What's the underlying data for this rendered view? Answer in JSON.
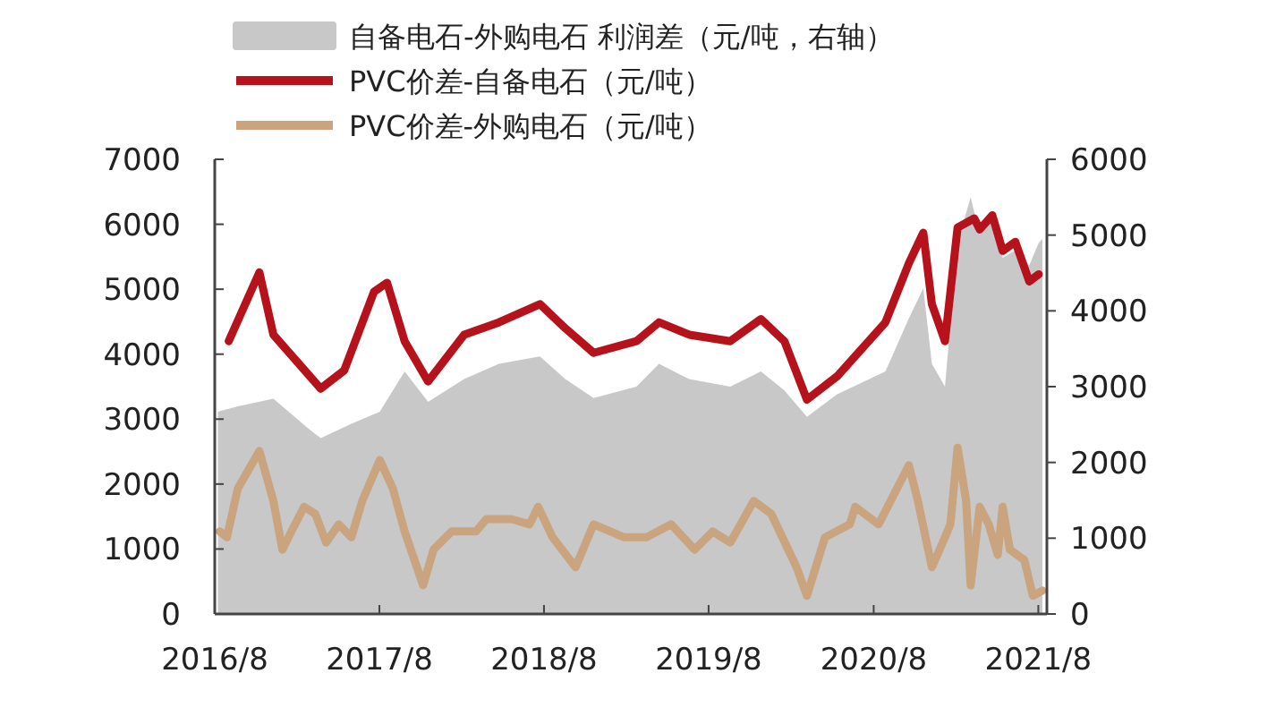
{
  "chart_data": {
    "type": "line",
    "series": [
      {
        "name": "自备电石-外购电石 利润差（元/吨，右轴）",
        "type": "area",
        "axis": "y2",
        "color": "#c8c8c8",
        "x": [
          "2016-08-08",
          "2016-09-21",
          "2016-12-09",
          "2017-02-28",
          "2017-03-24",
          "2017-05-31",
          "2017-08-02",
          "2017-09-26",
          "2017-11-17",
          "2018-02-05",
          "2018-04-23",
          "2018-07-23",
          "2018-09-17",
          "2018-11-19",
          "2019-02-22",
          "2019-04-13",
          "2019-06-19",
          "2019-09-18",
          "2019-11-25",
          "2020-01-16",
          "2020-03-06",
          "2020-05-12",
          "2020-08-27",
          "2020-10-18",
          "2020-11-19",
          "2020-12-08",
          "2021-01-06",
          "2021-02-03",
          "2021-03-04",
          "2021-03-24",
          "2021-04-21",
          "2021-05-14",
          "2021-06-11",
          "2021-07-12",
          "2021-08-02",
          "2021-08-10"
        ],
        "values": [
          2670,
          2740,
          2840,
          2430,
          2320,
          2510,
          2670,
          3200,
          2800,
          3100,
          3300,
          3400,
          3100,
          2850,
          3000,
          3300,
          3100,
          3000,
          3200,
          2950,
          2600,
          2900,
          3200,
          3900,
          4300,
          3300,
          3000,
          4900,
          5500,
          5000,
          5200,
          4700,
          4800,
          4600,
          4900,
          4950
        ]
      },
      {
        "name": "PVC价差-自备电石（元/吨）",
        "color": "#b5121b",
        "x": [
          "2016-09-01",
          "2016-11-08",
          "2016-12-09",
          "2017-03-24",
          "2017-05-15",
          "2017-07-20",
          "2017-08-18",
          "2017-09-26",
          "2017-11-17",
          "2018-02-05",
          "2018-04-23",
          "2018-07-23",
          "2018-09-17",
          "2018-11-19",
          "2019-02-22",
          "2019-04-13",
          "2019-06-19",
          "2019-09-18",
          "2019-11-25",
          "2020-01-16",
          "2020-03-06",
          "2020-05-12",
          "2020-08-27",
          "2020-10-18",
          "2020-11-19",
          "2020-12-08",
          "2021-01-06",
          "2021-02-03",
          "2021-03-12",
          "2021-03-24",
          "2021-04-21",
          "2021-05-14",
          "2021-06-11",
          "2021-07-12",
          "2021-08-02"
        ],
        "values": [
          4200,
          5260,
          4300,
          3470,
          3750,
          4960,
          5100,
          4200,
          3580,
          4300,
          4490,
          4770,
          4400,
          4020,
          4200,
          4490,
          4300,
          4200,
          4540,
          4200,
          3300,
          3660,
          4490,
          5400,
          5870,
          4770,
          4200,
          5950,
          6090,
          5920,
          6140,
          5590,
          5730,
          5120,
          5230
        ]
      },
      {
        "name": "PVC价差-外购电石（元/吨）",
        "color": "#c9a47e",
        "x": [
          "2016-08-12",
          "2016-08-28",
          "2016-09-21",
          "2016-11-08",
          "2016-12-09",
          "2016-12-29",
          "2017-01-18",
          "2017-02-15",
          "2017-03-12",
          "2017-04-05",
          "2017-05-03",
          "2017-05-31",
          "2017-06-24",
          "2017-08-02",
          "2017-08-31",
          "2017-09-26",
          "2017-11-06",
          "2017-11-29",
          "2018-01-08",
          "2018-03-03",
          "2018-03-26",
          "2018-05-21",
          "2018-06-30",
          "2018-07-19",
          "2018-08-20",
          "2018-10-10",
          "2018-11-19",
          "2019-01-26",
          "2019-03-16",
          "2019-05-10",
          "2019-07-01",
          "2019-08-10",
          "2019-09-18",
          "2019-11-09",
          "2019-12-18",
          "2020-02-12",
          "2020-03-06",
          "2020-04-15",
          "2020-06-09",
          "2020-06-21",
          "2020-08-12",
          "2020-10-18",
          "2020-11-07",
          "2020-12-08",
          "2021-01-06",
          "2021-01-18",
          "2021-02-03",
          "2021-02-22",
          "2021-03-04",
          "2021-03-24",
          "2021-04-13",
          "2021-05-03",
          "2021-05-14",
          "2021-05-30",
          "2021-07-01",
          "2021-07-20",
          "2021-08-10"
        ],
        "values": [
          1270,
          1180,
          1930,
          2510,
          1740,
          990,
          1270,
          1650,
          1540,
          1100,
          1380,
          1180,
          1740,
          2370,
          1930,
          1270,
          440,
          990,
          1270,
          1270,
          1460,
          1460,
          1380,
          1650,
          1180,
          720,
          1380,
          1180,
          1180,
          1380,
          990,
          1270,
          1100,
          1740,
          1540,
          720,
          280,
          1180,
          1380,
          1650,
          1380,
          2290,
          1740,
          720,
          1180,
          1380,
          2560,
          1740,
          440,
          1650,
          1380,
          910,
          1650,
          990,
          830,
          280,
          360
        ]
      }
    ],
    "xlim": [
      "2016-08-01",
      "2021-08-20"
    ],
    "xticks": [
      {
        "value": "2016-08-01",
        "label": "2016/8"
      },
      {
        "value": "2017-08-01",
        "label": "2017/8"
      },
      {
        "value": "2018-08-01",
        "label": "2018/8"
      },
      {
        "value": "2019-08-01",
        "label": "2019/8"
      },
      {
        "value": "2020-08-01",
        "label": "2020/8"
      },
      {
        "value": "2021-08-01",
        "label": "2021/8"
      }
    ],
    "ylim": [
      0,
      7000
    ],
    "yticks": [
      0,
      1000,
      2000,
      3000,
      4000,
      5000,
      6000,
      7000
    ],
    "y2lim": [
      0,
      6000
    ],
    "y2ticks": [
      0,
      1000,
      2000,
      3000,
      4000,
      5000,
      6000
    ],
    "legend": "top",
    "grid": false,
    "marker": "none",
    "line_style": "solid"
  }
}
